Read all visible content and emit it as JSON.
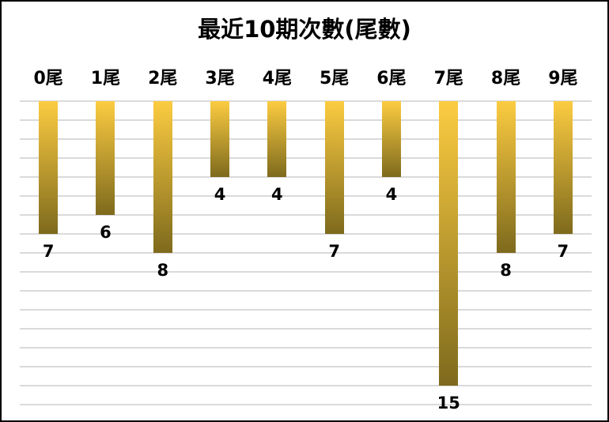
{
  "chart_data": {
    "type": "bar",
    "title": "最近10期次數(尾數)",
    "categories": [
      "0尾",
      "1尾",
      "2尾",
      "3尾",
      "4尾",
      "5尾",
      "6尾",
      "7尾",
      "8尾",
      "9尾"
    ],
    "values": [
      7,
      6,
      8,
      4,
      4,
      7,
      4,
      15,
      8,
      7
    ],
    "orientation": "columns-hang-down-from-top",
    "ylim": [
      0,
      16
    ],
    "grid": true,
    "gridline_count": 17,
    "legend": "none",
    "colors": {
      "bar_gradient_top": "#FCCC41",
      "bar_gradient_bottom": "#7E6A1D",
      "gridline": "#dadada",
      "text": "#000000",
      "border": "#000000",
      "background": "#ffffff"
    }
  }
}
